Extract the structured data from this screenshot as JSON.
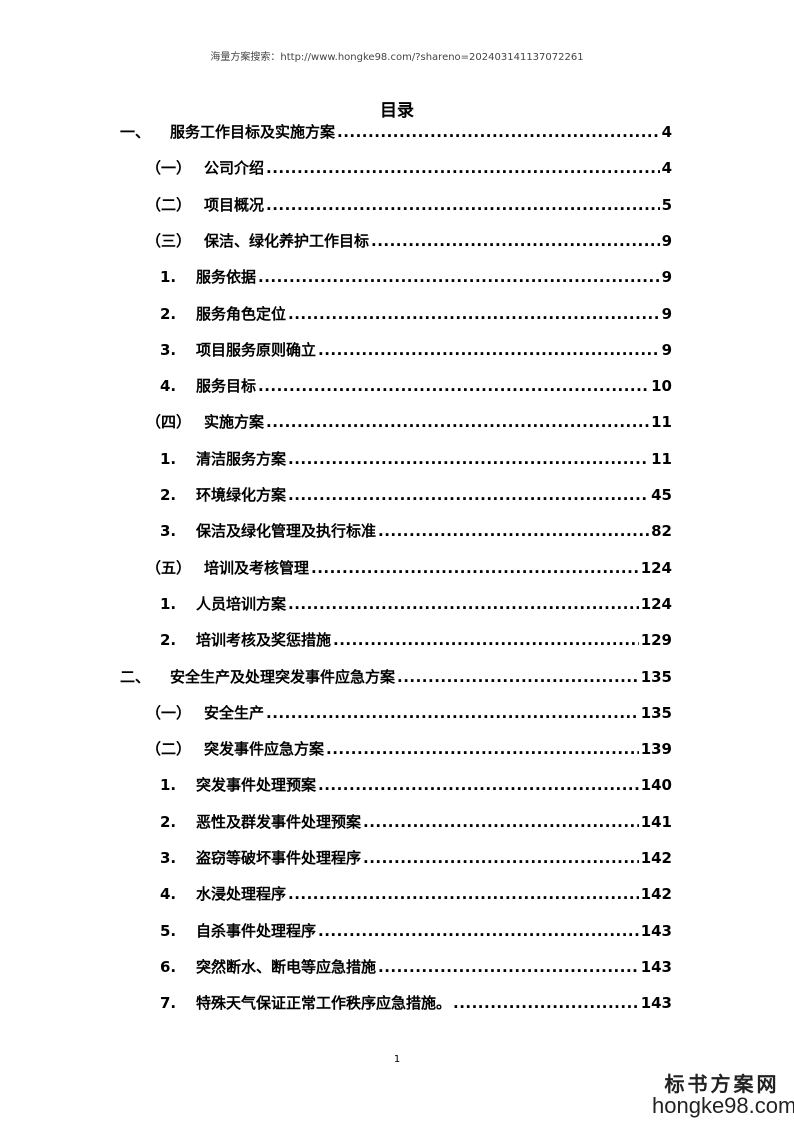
{
  "header": "海量方案搜索：http://www.hongke98.com/?shareno=202403141137072261",
  "title": "目录",
  "entries": [
    {
      "level": 1,
      "num": "一、",
      "text": "服务工作目标及实施方案",
      "page": "4"
    },
    {
      "level": 2,
      "num": "（一）",
      "text": "公司介绍",
      "page": "4"
    },
    {
      "level": 2,
      "num": "（二）",
      "text": "项目概况",
      "page": "5"
    },
    {
      "level": 2,
      "num": "（三）",
      "text": "保洁、绿化养护工作目标",
      "page": "9"
    },
    {
      "level": 3,
      "num": "1.",
      "text": "服务依据",
      "page": "9"
    },
    {
      "level": 3,
      "num": "2.",
      "text": "服务角色定位",
      "page": "9"
    },
    {
      "level": 3,
      "num": "3.",
      "text": "项目服务原则确立",
      "page": "9"
    },
    {
      "level": 3,
      "num": "4.",
      "text": "服务目标",
      "page": "10"
    },
    {
      "level": 2,
      "num": "（四）",
      "text": "实施方案",
      "page": "11"
    },
    {
      "level": 3,
      "num": "1.",
      "text": "清洁服务方案",
      "page": "11"
    },
    {
      "level": 3,
      "num": "2.",
      "text": "环境绿化方案",
      "page": "45"
    },
    {
      "level": 3,
      "num": "3.",
      "text": "保洁及绿化管理及执行标准",
      "page": "82"
    },
    {
      "level": 2,
      "num": "（五）",
      "text": "培训及考核管理",
      "page": "124"
    },
    {
      "level": 3,
      "num": "1.",
      "text": "人员培训方案",
      "page": "124"
    },
    {
      "level": 3,
      "num": "2.",
      "text": "培训考核及奖惩措施",
      "page": "129"
    },
    {
      "level": 1,
      "num": "二、",
      "text": "安全生产及处理突发事件应急方案",
      "page": "135"
    },
    {
      "level": 2,
      "num": "（一）",
      "text": "安全生产",
      "page": "135"
    },
    {
      "level": 2,
      "num": "（二）",
      "text": "突发事件应急方案",
      "page": "139"
    },
    {
      "level": 3,
      "num": "1.",
      "text": "突发事件处理预案",
      "page": "140"
    },
    {
      "level": 3,
      "num": "2.",
      "text": "恶性及群发事件处理预案",
      "page": "141"
    },
    {
      "level": 3,
      "num": "3.",
      "text": "盗窃等破坏事件处理程序",
      "page": "142"
    },
    {
      "level": 3,
      "num": "4.",
      "text": "水浸处理程序",
      "page": "142"
    },
    {
      "level": 3,
      "num": "5.",
      "text": "自杀事件处理程序",
      "page": "143"
    },
    {
      "level": 3,
      "num": "6.",
      "text": "突然断水、断电等应急措施",
      "page": "143"
    },
    {
      "level": 3,
      "num": "7.",
      "text": "特殊天气保证正常工作秩序应急措施。",
      "page": "143"
    }
  ],
  "footer": {
    "page_number": "1"
  },
  "watermark": {
    "line1": "标书方案网",
    "line2": "hongke98.com"
  }
}
